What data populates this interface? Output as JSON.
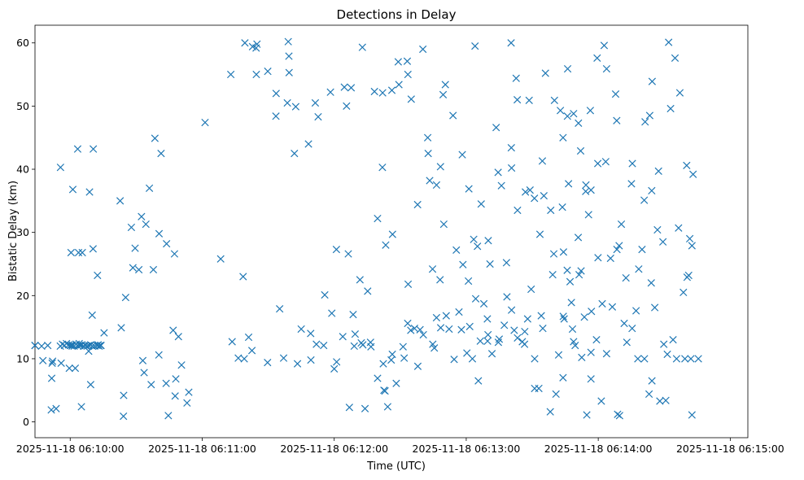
{
  "chart_data": {
    "type": "scatter",
    "title": "Detections in Delay",
    "xlabel": "Time (UTC)",
    "ylabel": "Bistatic Delay (km)",
    "marker": "x",
    "color": "#1f77b4",
    "grid": false,
    "xlim": [
      -16,
      308
    ],
    "ylim": [
      -2.5,
      62.8
    ],
    "xticks": [
      {
        "value": 0,
        "label": "2025-11-18 06:10:00"
      },
      {
        "value": 60,
        "label": "2025-11-18 06:11:00"
      },
      {
        "value": 120,
        "label": "2025-11-18 06:12:00"
      },
      {
        "value": 180,
        "label": "2025-11-18 06:13:00"
      },
      {
        "value": 240,
        "label": "2025-11-18 06:14:00"
      },
      {
        "value": 300,
        "label": "2025-11-18 06:15:00"
      }
    ],
    "yticks": [
      {
        "value": 0,
        "label": "0"
      },
      {
        "value": 10,
        "label": "10"
      },
      {
        "value": 20,
        "label": "20"
      },
      {
        "value": 30,
        "label": "30"
      },
      {
        "value": 40,
        "label": "40"
      },
      {
        "value": 50,
        "label": "50"
      },
      {
        "value": 60,
        "label": "60"
      }
    ],
    "x": [
      -12.4,
      -6.4,
      -4.1,
      2.3,
      5.1,
      12.7,
      13.8,
      24.3,
      24.2,
      15.4,
      23.2,
      10.5,
      -4.4,
      0.4,
      1.2,
      3.8,
      5.5,
      3.4,
      8.8,
      10.4,
      12.4,
      25.2,
      28.5,
      29.5,
      32.4,
      37.8,
      38.5,
      41.3,
      40.4,
      43.8,
      47.4,
      61.3,
      68.4,
      78.6,
      -8.2,
      -10.2,
      -8.6,
      -8.4,
      -8.0,
      -0.4,
      8.4,
      0.9,
      4.1,
      -16.0,
      -16.0,
      -13.0,
      -4.5,
      -3.5,
      -2.6,
      -1.7,
      -0.7,
      0.1,
      0.9,
      1.8,
      2.7,
      3.6,
      4.4,
      5.2,
      6.1,
      6.9,
      7.7,
      8.5,
      9.3,
      10.1,
      11.1,
      12.2,
      13.1,
      14.0,
      44.6,
      50.6,
      53.1,
      43.6,
      40.3,
      47.7,
      53.9,
      48.0,
      49.2,
      46.8,
      36.8,
      33.0,
      33.6,
      31.2,
      34.4,
      36.0,
      27.8,
      22.7,
      10.0,
      9.3,
      73.6,
      76.4,
      79.1,
      81.1,
      82.6,
      89.7,
      95.2,
      97.0,
      103.3,
      105.0,
      109.3,
      111.9,
      109.4,
      115.2,
      120.0,
      121.1,
      123.9,
      129.1,
      129.5,
      132.3,
      133.0,
      136.7,
      139.7,
      142.6,
      143.1,
      144.3,
      146.4,
      151.3,
      151.8,
      154.8,
      156.5,
      160.5,
      165.5,
      166.5,
      168.4,
      174.5,
      177.8,
      180.3,
      181.6,
      182.8,
      185.5,
      186.4,
      189.7,
      191.7,
      195.0,
      197.3,
      201.8,
      203.3,
      205.5,
      207.9,
      211.1,
      211.1,
      214.8,
      222.0,
      224.0,
      228.8,
      229.5,
      232.5,
      234.8,
      236.7,
      239.2,
      241.4,
      243.8,
      248.8,
      253.0,
      258.0,
      261.0,
      264.4,
      268.0,
      271.4,
      275.6,
      279.4,
      282.1,
      285.5,
      73.0,
      79.4,
      84.5,
      89.8,
      93.6,
      99.5,
      102.5,
      101.9,
      108.3,
      112.7,
      118.3,
      124.6,
      127.7,
      132.8,
      138.3,
      142.0,
      146.2,
      149.4,
      153.5,
      155.0,
      160.3,
      162.5,
      162.7,
      166.5,
      168.3,
      174.0,
      178.2,
      181.2,
      183.4,
      186.8,
      190.8,
      194.5,
      200.4,
      200.5,
      203.2,
      206.9,
      211.0,
      213.5,
      216.0,
      218.4,
      220.1,
      222.8,
      224.0,
      226.5,
      228.8,
      231.0,
      234.3,
      236.4,
      239.5,
      239.8,
      242.7,
      243.8,
      247.9,
      255.1,
      259.9,
      260.9,
      261.3,
      266.9,
      267.4,
      272.0,
      274.9,
      277.1,
      280.2,
      281.6,
      282.6,
      115.7,
      121.0,
      126.4,
      131.7,
      135.2,
      139.7,
      141.9,
      143.4,
      146.5,
      153.6,
      157.9,
      163.4,
      169.8,
      175.5,
      178.5,
      185.1,
      190.0,
      196.0,
      200.6,
      203.3,
      209.0,
      215.3,
      219.3,
      224.2,
      232.2,
      236.7,
      239.9,
      245.6,
      252.6,
      118.9,
      128.6,
      136.5,
      142.3,
      145.9,
      153.4,
      159.0,
      164.7,
      168.1,
      170.9,
      176.7,
      184.3,
      189.6,
      194.6,
      198.5,
      206.6,
      214.1,
      224.5,
      227.2,
      231.3,
      233.7,
      236.9,
      241.8,
      249.5,
      255.4,
      265.7,
      269.4,
      274.0,
      281.1,
      126.9,
      134.0,
      148.2,
      158.0,
      164.8,
      172.2,
      189.9,
      206.5,
      224.1,
      228.3,
      246.4,
      251.8,
      257.2,
      269.8,
      82.9,
      84.6,
      84.9,
      98.7,
      99.4,
      99.1,
      93.5,
      111.4,
      125.6,
      149.1,
      153.2,
      169.5,
      170.5,
      184.0,
      193.6,
      202.7,
      208.6,
      214.6,
      226.0,
      226.1,
      232.0,
      243.4,
      248.4,
      255.5,
      263.4,
      264.5,
      272.9,
      223.7,
      230.9,
      235.6,
      234.4,
      250.5,
      264.3,
      276.5,
      283.1,
      213.0,
      218.2,
      220.8,
      236.7,
      249.7,
      263.1,
      270.7,
      282.6,
      181.0,
      188.0,
      198.3,
      200.6,
      209.5,
      219.8,
      225.9,
      227.8,
      248.5,
      258.4,
      264.1,
      278.7,
      280.4
    ],
    "y": [
      9.7,
      2.1,
      9.3,
      8.5,
      2.4,
      12.2,
      12.1,
      4.2,
      0.9,
      14.1,
      14.9,
      43.2,
      40.3,
      26.8,
      36.8,
      26.8,
      26.8,
      43.2,
      36.4,
      27.4,
      23.2,
      19.7,
      24.4,
      27.5,
      32.5,
      24.1,
      44.9,
      42.5,
      29.8,
      28.2,
      26.6,
      47.4,
      25.8,
      23.0,
      9.3,
      12.1,
      1.9,
      6.9,
      9.6,
      8.5,
      11.2,
      12.0,
      12.4,
      12.1,
      12.1,
      12.0,
      12.0,
      12.3,
      12.1,
      12.4,
      12.2,
      12.1,
      12.2,
      12.0,
      12.3,
      12.0,
      12.1,
      12.2,
      12.0,
      12.1,
      12.0,
      12.1,
      12.2,
      12.0,
      12.0,
      12.1,
      12.0,
      12.1,
      1.0,
      9.0,
      3.0,
      6.1,
      10.6,
      4.1,
      4.7,
      6.8,
      13.5,
      14.5,
      5.9,
      9.7,
      7.8,
      24.1,
      31.3,
      37.0,
      30.8,
      35.0,
      16.9,
      5.9,
      12.7,
      10.1,
      10.0,
      13.4,
      11.3,
      9.4,
      17.9,
      10.1,
      9.2,
      14.7,
      14.0,
      12.3,
      9.8,
      12.1,
      8.4,
      9.5,
      13.5,
      12.0,
      13.9,
      12.5,
      12.2,
      11.9,
      6.9,
      5.0,
      4.9,
      2.4,
      10.7,
      11.9,
      10.1,
      14.5,
      14.8,
      13.8,
      11.7,
      16.5,
      14.9,
      9.9,
      14.6,
      10.9,
      15.1,
      10.0,
      6.5,
      12.8,
      12.8,
      10.8,
      13.1,
      15.3,
      14.5,
      13.3,
      12.7,
      16.3,
      10.0,
      5.3,
      14.8,
      10.6,
      7.0,
      12.7,
      12.1,
      10.2,
      1.1,
      11.0,
      13.0,
      3.3,
      10.8,
      1.2,
      12.6,
      10.0,
      10.0,
      6.5,
      3.3,
      10.7,
      10.0,
      10.0,
      10.0,
      10.0,
      55.0,
      60.0,
      59.2,
      55.5,
      52.0,
      55.3,
      49.9,
      42.5,
      44.0,
      48.3,
      52.2,
      53.0,
      52.9,
      59.3,
      52.3,
      52.1,
      52.5,
      53.4,
      55.0,
      51.1,
      59.0,
      45.0,
      42.5,
      37.5,
      40.4,
      48.5,
      42.3,
      36.9,
      28.9,
      34.5,
      25.0,
      39.5,
      60.0,
      43.4,
      51.0,
      36.4,
      35.4,
      29.7,
      55.2,
      33.5,
      50.9,
      49.3,
      45.0,
      37.7,
      48.8,
      47.3,
      36.5,
      49.3,
      57.6,
      40.9,
      59.6,
      55.9,
      51.9,
      37.7,
      27.3,
      35.1,
      47.5,
      30.4,
      39.7,
      60.1,
      57.6,
      52.1,
      40.6,
      29.0,
      27.9,
      20.1,
      27.3,
      26.6,
      22.5,
      20.7,
      32.2,
      40.3,
      28.0,
      29.7,
      21.8,
      34.4,
      38.2,
      31.3,
      27.2,
      24.9,
      27.8,
      28.7,
      37.4,
      40.2,
      33.5,
      36.7,
      35.8,
      23.3,
      26.9,
      23.9,
      36.7,
      26.0,
      25.9,
      22.8,
      17.2,
      17.0,
      12.6,
      9.2,
      9.8,
      15.6,
      14.6,
      24.2,
      22.5,
      16.8,
      17.4,
      19.5,
      16.3,
      12.6,
      19.8,
      14.3,
      16.8,
      16.3,
      22.2,
      23.3,
      16.6,
      17.5,
      18.7,
      27.9,
      14.8,
      18.1,
      28.5,
      13.0,
      23.2,
      2.3,
      2.1,
      6.1,
      8.8,
      12.3,
      14.7,
      13.8,
      12.3,
      16.7,
      14.7,
      18.2,
      15.6,
      17.6,
      12.3,
      59.4,
      55.0,
      59.8,
      50.5,
      57.9,
      60.2,
      48.4,
      50.5,
      50.0,
      57.0,
      57.1,
      51.8,
      53.4,
      59.5,
      46.6,
      54.4,
      50.9,
      41.3,
      48.4,
      55.9,
      42.9,
      41.2,
      47.7,
      40.9,
      48.5,
      53.9,
      49.6,
      34.0,
      29.2,
      32.8,
      37.5,
      31.3,
      36.6,
      30.7,
      39.2,
      5.3,
      1.6,
      4.4,
      6.8,
      1.0,
      4.4,
      3.4,
      1.1,
      22.3,
      18.7,
      25.2,
      17.7,
      21.0,
      26.6,
      24.0,
      18.9,
      27.3,
      24.2,
      22.0,
      20.5,
      22.9
    ]
  }
}
